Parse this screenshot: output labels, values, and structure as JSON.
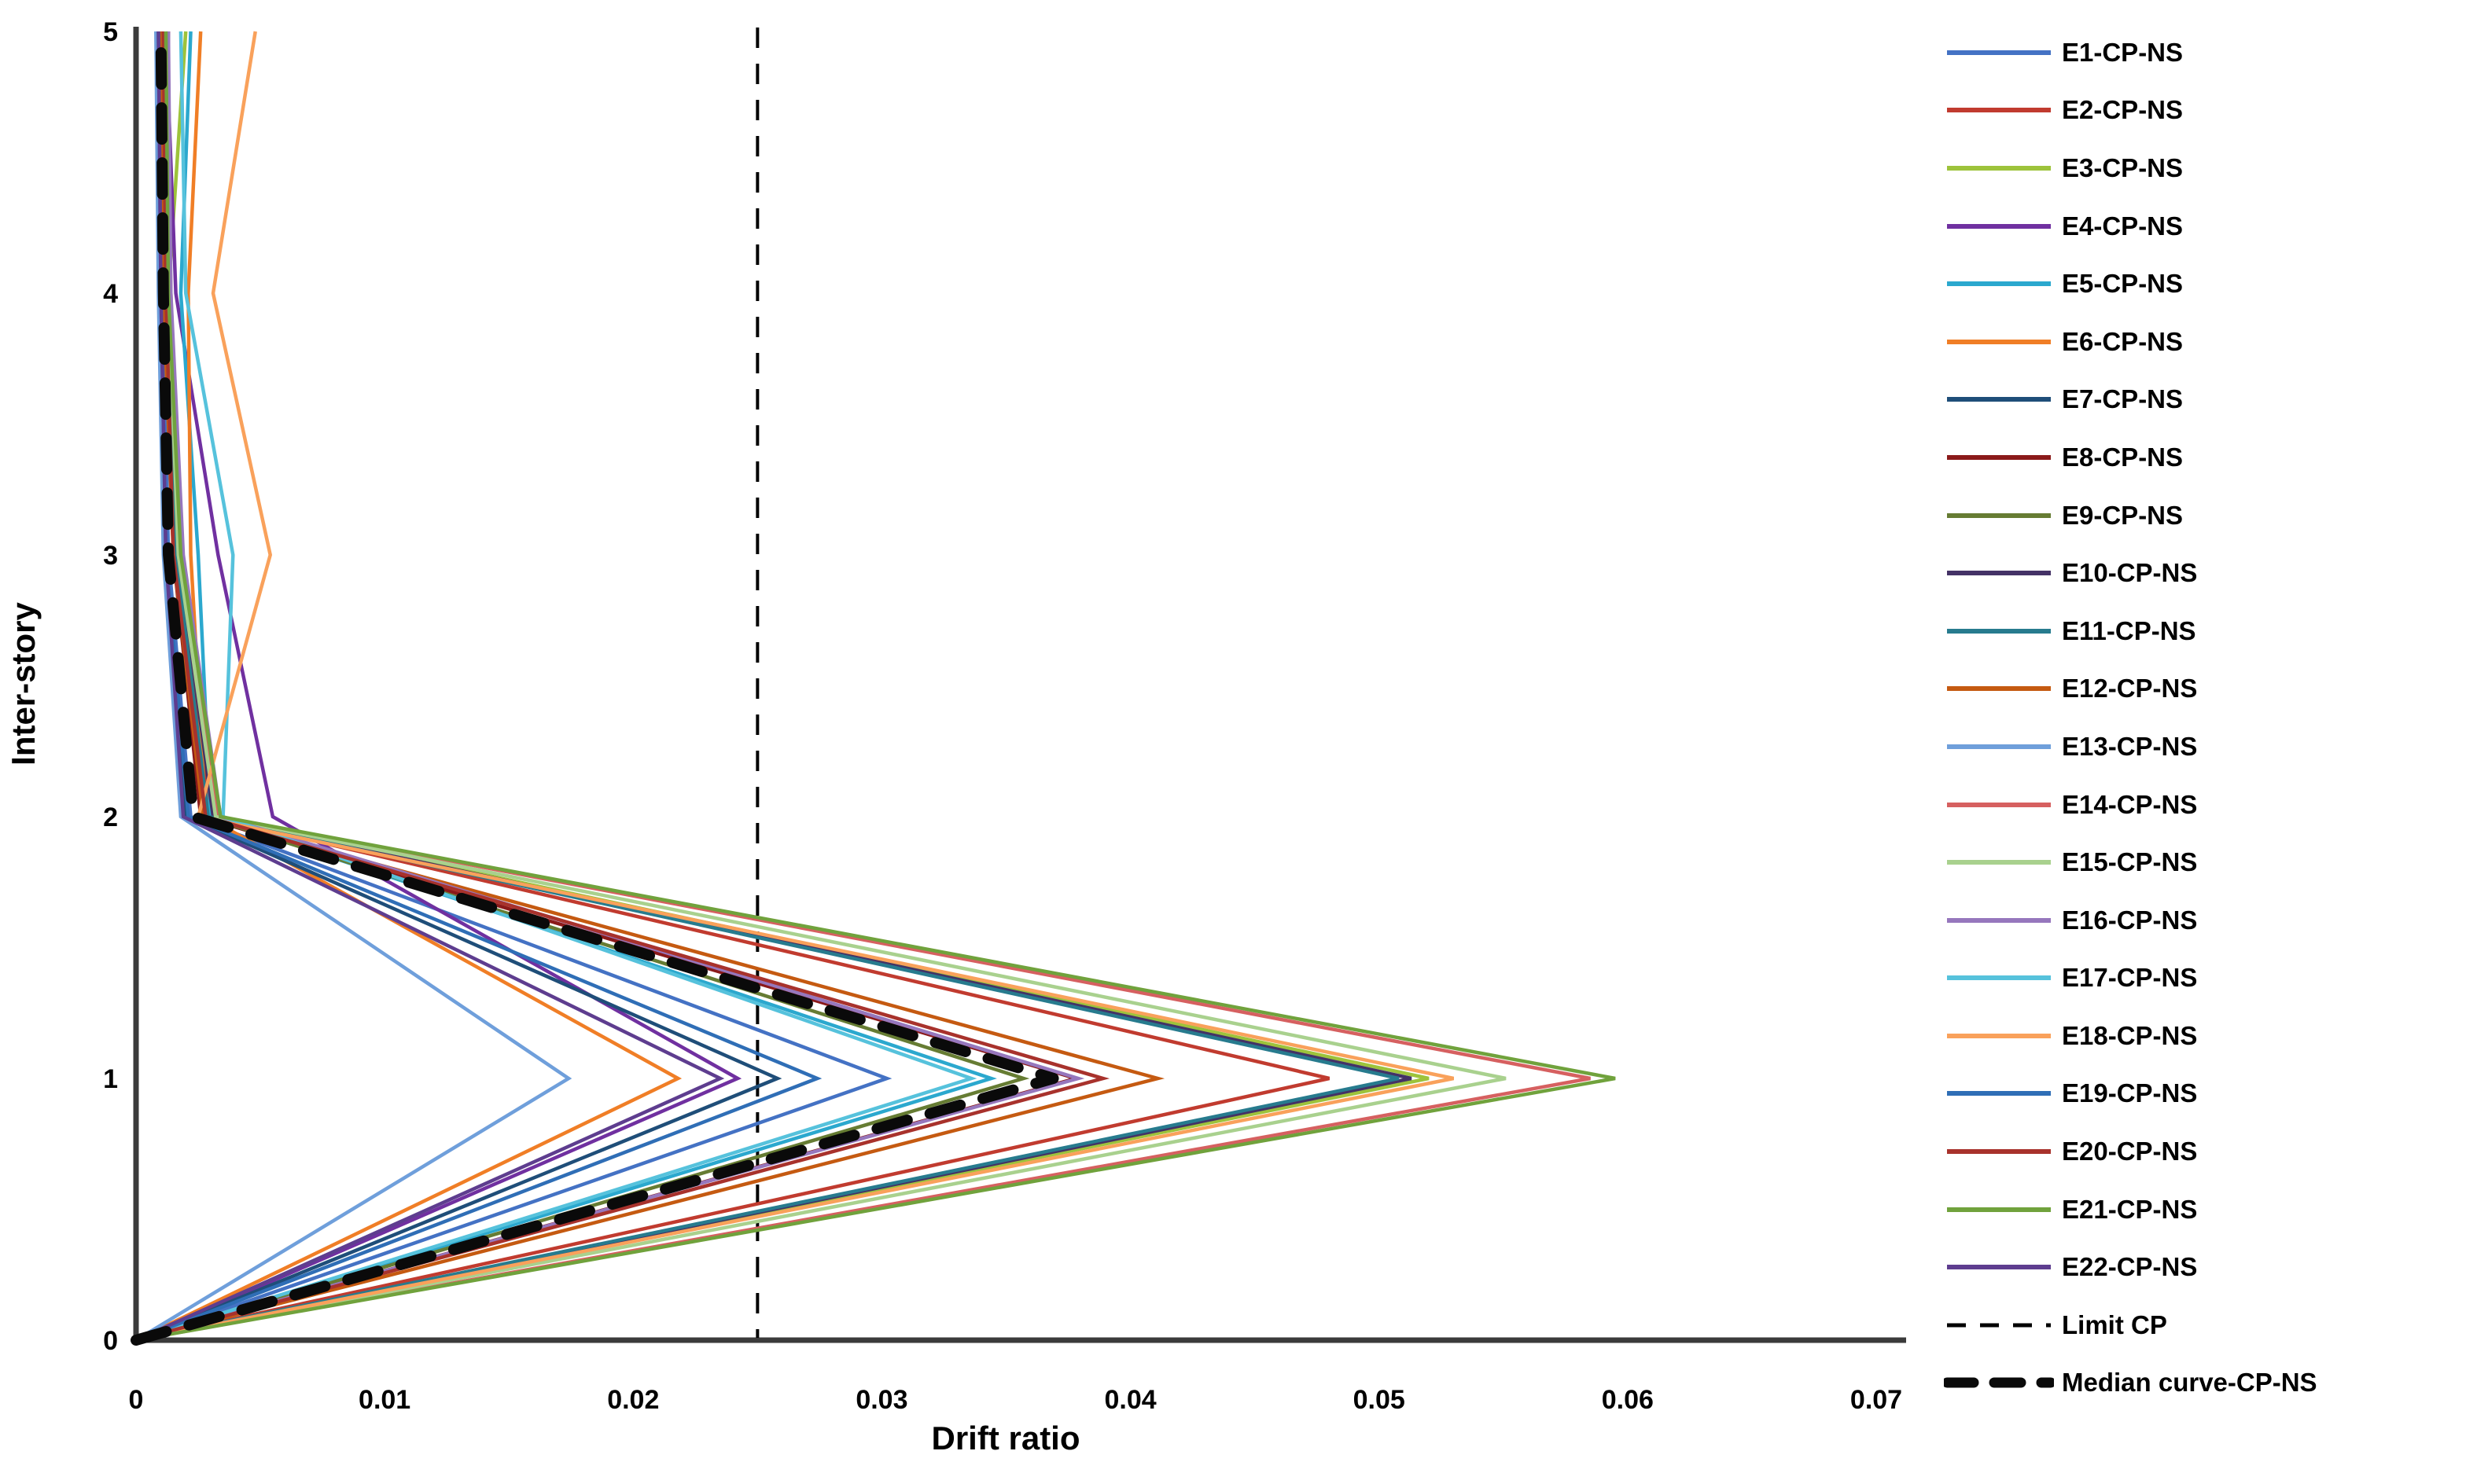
{
  "chart_data": {
    "type": "line",
    "title": "",
    "xlabel": "Drift ratio",
    "ylabel": "Inter-story",
    "xlim": [
      0,
      0.07
    ],
    "ylim": [
      0,
      5
    ],
    "grid": false,
    "legend_position": "right",
    "x_tick_values": [
      0,
      0.01,
      0.02,
      0.03,
      0.04,
      0.05,
      0.06,
      0.07
    ],
    "x_tick_labels": [
      "0",
      "0.01",
      "0.02",
      "0.03",
      "0.04",
      "0.05",
      "0.06",
      "0.07"
    ],
    "y_tick_values": [
      0,
      1,
      2,
      3,
      4,
      5
    ],
    "y_tick_labels": [
      "0",
      "1",
      "2",
      "3",
      "4",
      "5"
    ],
    "stories": [
      0,
      1,
      2,
      3,
      4,
      5
    ],
    "axis_color": "#3b3b3b",
    "series": [
      {
        "name": "E1-CP-NS",
        "color": "#4472C4",
        "values": [
          0,
          0.0302,
          0.0022,
          0.0013,
          0.0011,
          0.001
        ]
      },
      {
        "name": "E2-CP-NS",
        "color": "#C13B2F",
        "values": [
          0,
          0.048,
          0.003,
          0.0016,
          0.0012,
          0.0011
        ]
      },
      {
        "name": "E3-CP-NS",
        "color": "#9DC33B",
        "values": [
          0,
          0.052,
          0.0032,
          0.0018,
          0.0013,
          0.002
        ]
      },
      {
        "name": "E4-CP-NS",
        "color": "#7030A0",
        "values": [
          0,
          0.0242,
          0.0055,
          0.0033,
          0.0016,
          0.0012
        ]
      },
      {
        "name": "E5-CP-NS",
        "color": "#2BA8CE",
        "values": [
          0,
          0.0344,
          0.003,
          0.0025,
          0.0018,
          0.0022
        ]
      },
      {
        "name": "E6-CP-NS",
        "color": "#F07E26",
        "values": [
          0,
          0.0218,
          0.0028,
          0.0022,
          0.0021,
          0.0026
        ]
      },
      {
        "name": "E7-CP-NS",
        "color": "#1F4E79",
        "values": [
          0,
          0.0258,
          0.002,
          0.0012,
          0.001,
          0.0009
        ]
      },
      {
        "name": "E8-CP-NS",
        "color": "#8B1A1A",
        "values": [
          0,
          0.0378,
          0.0026,
          0.0015,
          0.0012,
          0.0013
        ]
      },
      {
        "name": "E9-CP-NS",
        "color": "#667C33",
        "values": [
          0,
          0.0357,
          0.0028,
          0.0016,
          0.0012,
          0.0011
        ]
      },
      {
        "name": "E10-CP-NS",
        "color": "#443266",
        "values": [
          0,
          0.0513,
          0.0031,
          0.0017,
          0.0013,
          0.0012
        ]
      },
      {
        "name": "E11-CP-NS",
        "color": "#277B8E",
        "values": [
          0,
          0.0508,
          0.0029,
          0.0016,
          0.0012,
          0.0011
        ]
      },
      {
        "name": "E12-CP-NS",
        "color": "#C55A11",
        "values": [
          0,
          0.0411,
          0.0027,
          0.0015,
          0.0011,
          0.001
        ]
      },
      {
        "name": "E13-CP-NS",
        "color": "#6F9FDB",
        "values": [
          0,
          0.0174,
          0.0018,
          0.0011,
          0.0009,
          0.0008
        ]
      },
      {
        "name": "E14-CP-NS",
        "color": "#D66060",
        "values": [
          0,
          0.0585,
          0.0033,
          0.0018,
          0.0014,
          0.0012
        ]
      },
      {
        "name": "E15-CP-NS",
        "color": "#A9D18E",
        "values": [
          0,
          0.0551,
          0.0032,
          0.0017,
          0.0013,
          0.0011
        ]
      },
      {
        "name": "E16-CP-NS",
        "color": "#9677BD",
        "values": [
          0,
          0.0379,
          0.0034,
          0.0019,
          0.0014,
          0.0013
        ]
      },
      {
        "name": "E17-CP-NS",
        "color": "#56C2DC",
        "values": [
          0,
          0.0336,
          0.0035,
          0.0039,
          0.002,
          0.0018
        ]
      },
      {
        "name": "E18-CP-NS",
        "color": "#F9A15B",
        "values": [
          0,
          0.053,
          0.0025,
          0.0054,
          0.0031,
          0.0048
        ]
      },
      {
        "name": "E19-CP-NS",
        "color": "#2F6EB6",
        "values": [
          0,
          0.0274,
          0.0021,
          0.0012,
          0.001,
          0.0009
        ]
      },
      {
        "name": "E20-CP-NS",
        "color": "#A8322C",
        "values": [
          0,
          0.0389,
          0.0028,
          0.0015,
          0.0012,
          0.0011
        ]
      },
      {
        "name": "E21-CP-NS",
        "color": "#70A23C",
        "values": [
          0,
          0.0595,
          0.0034,
          0.0018,
          0.0013,
          0.0012
        ]
      },
      {
        "name": "E22-CP-NS",
        "color": "#5E3D8F",
        "values": [
          0,
          0.0235,
          0.0019,
          0.0012,
          0.001,
          0.0009
        ]
      }
    ],
    "reference_lines": [
      {
        "name": "Limit CP",
        "orientation": "vertical",
        "x": 0.025,
        "color": "#000000",
        "style": "dashed-thin"
      }
    ],
    "median_series": {
      "name": "Median curve-CP-NS",
      "color": "#0a0a0a",
      "style": "dashed-thick",
      "values": [
        0,
        0.0369,
        0.0023,
        0.0013,
        0.0011,
        0.001
      ]
    }
  }
}
